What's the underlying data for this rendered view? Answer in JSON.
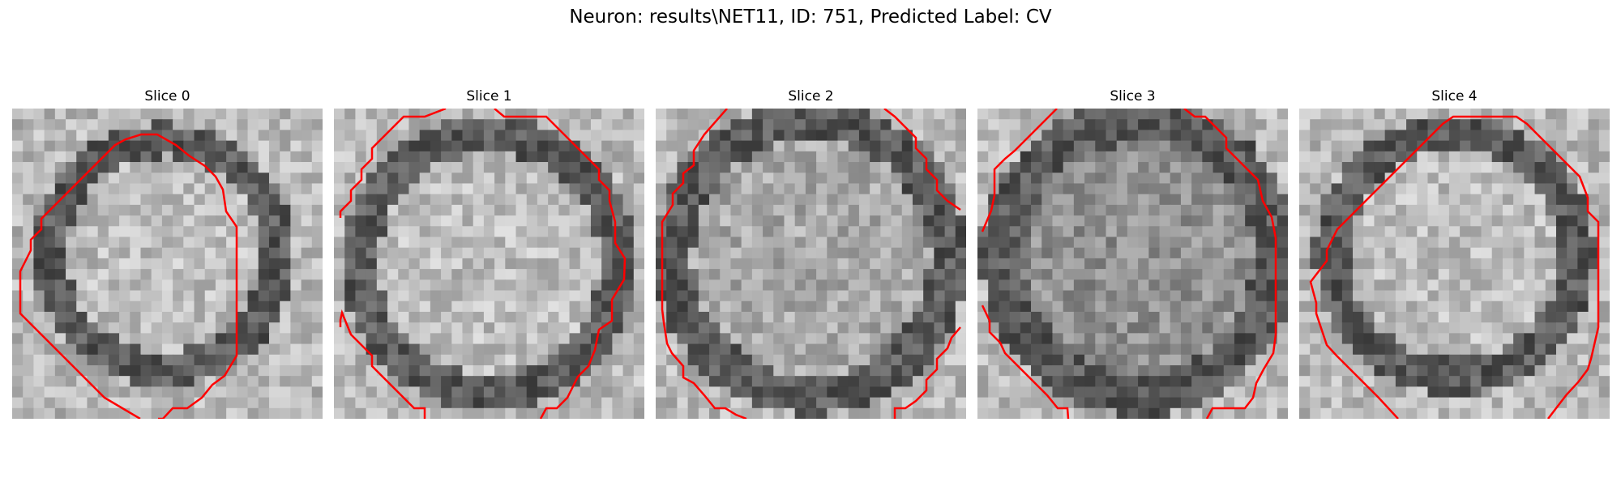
{
  "figure": {
    "title": "Neuron: results\\NET11, ID: 751, Predicted Label: CV"
  },
  "panels": [
    {
      "title": "Slice 0"
    },
    {
      "title": "Slice 1"
    },
    {
      "title": "Slice 2"
    },
    {
      "title": "Slice 3"
    },
    {
      "title": "Slice 4"
    }
  ],
  "colors": {
    "contour": "#ff0000",
    "background": "#ffffff"
  },
  "colormap": "grayscale"
}
